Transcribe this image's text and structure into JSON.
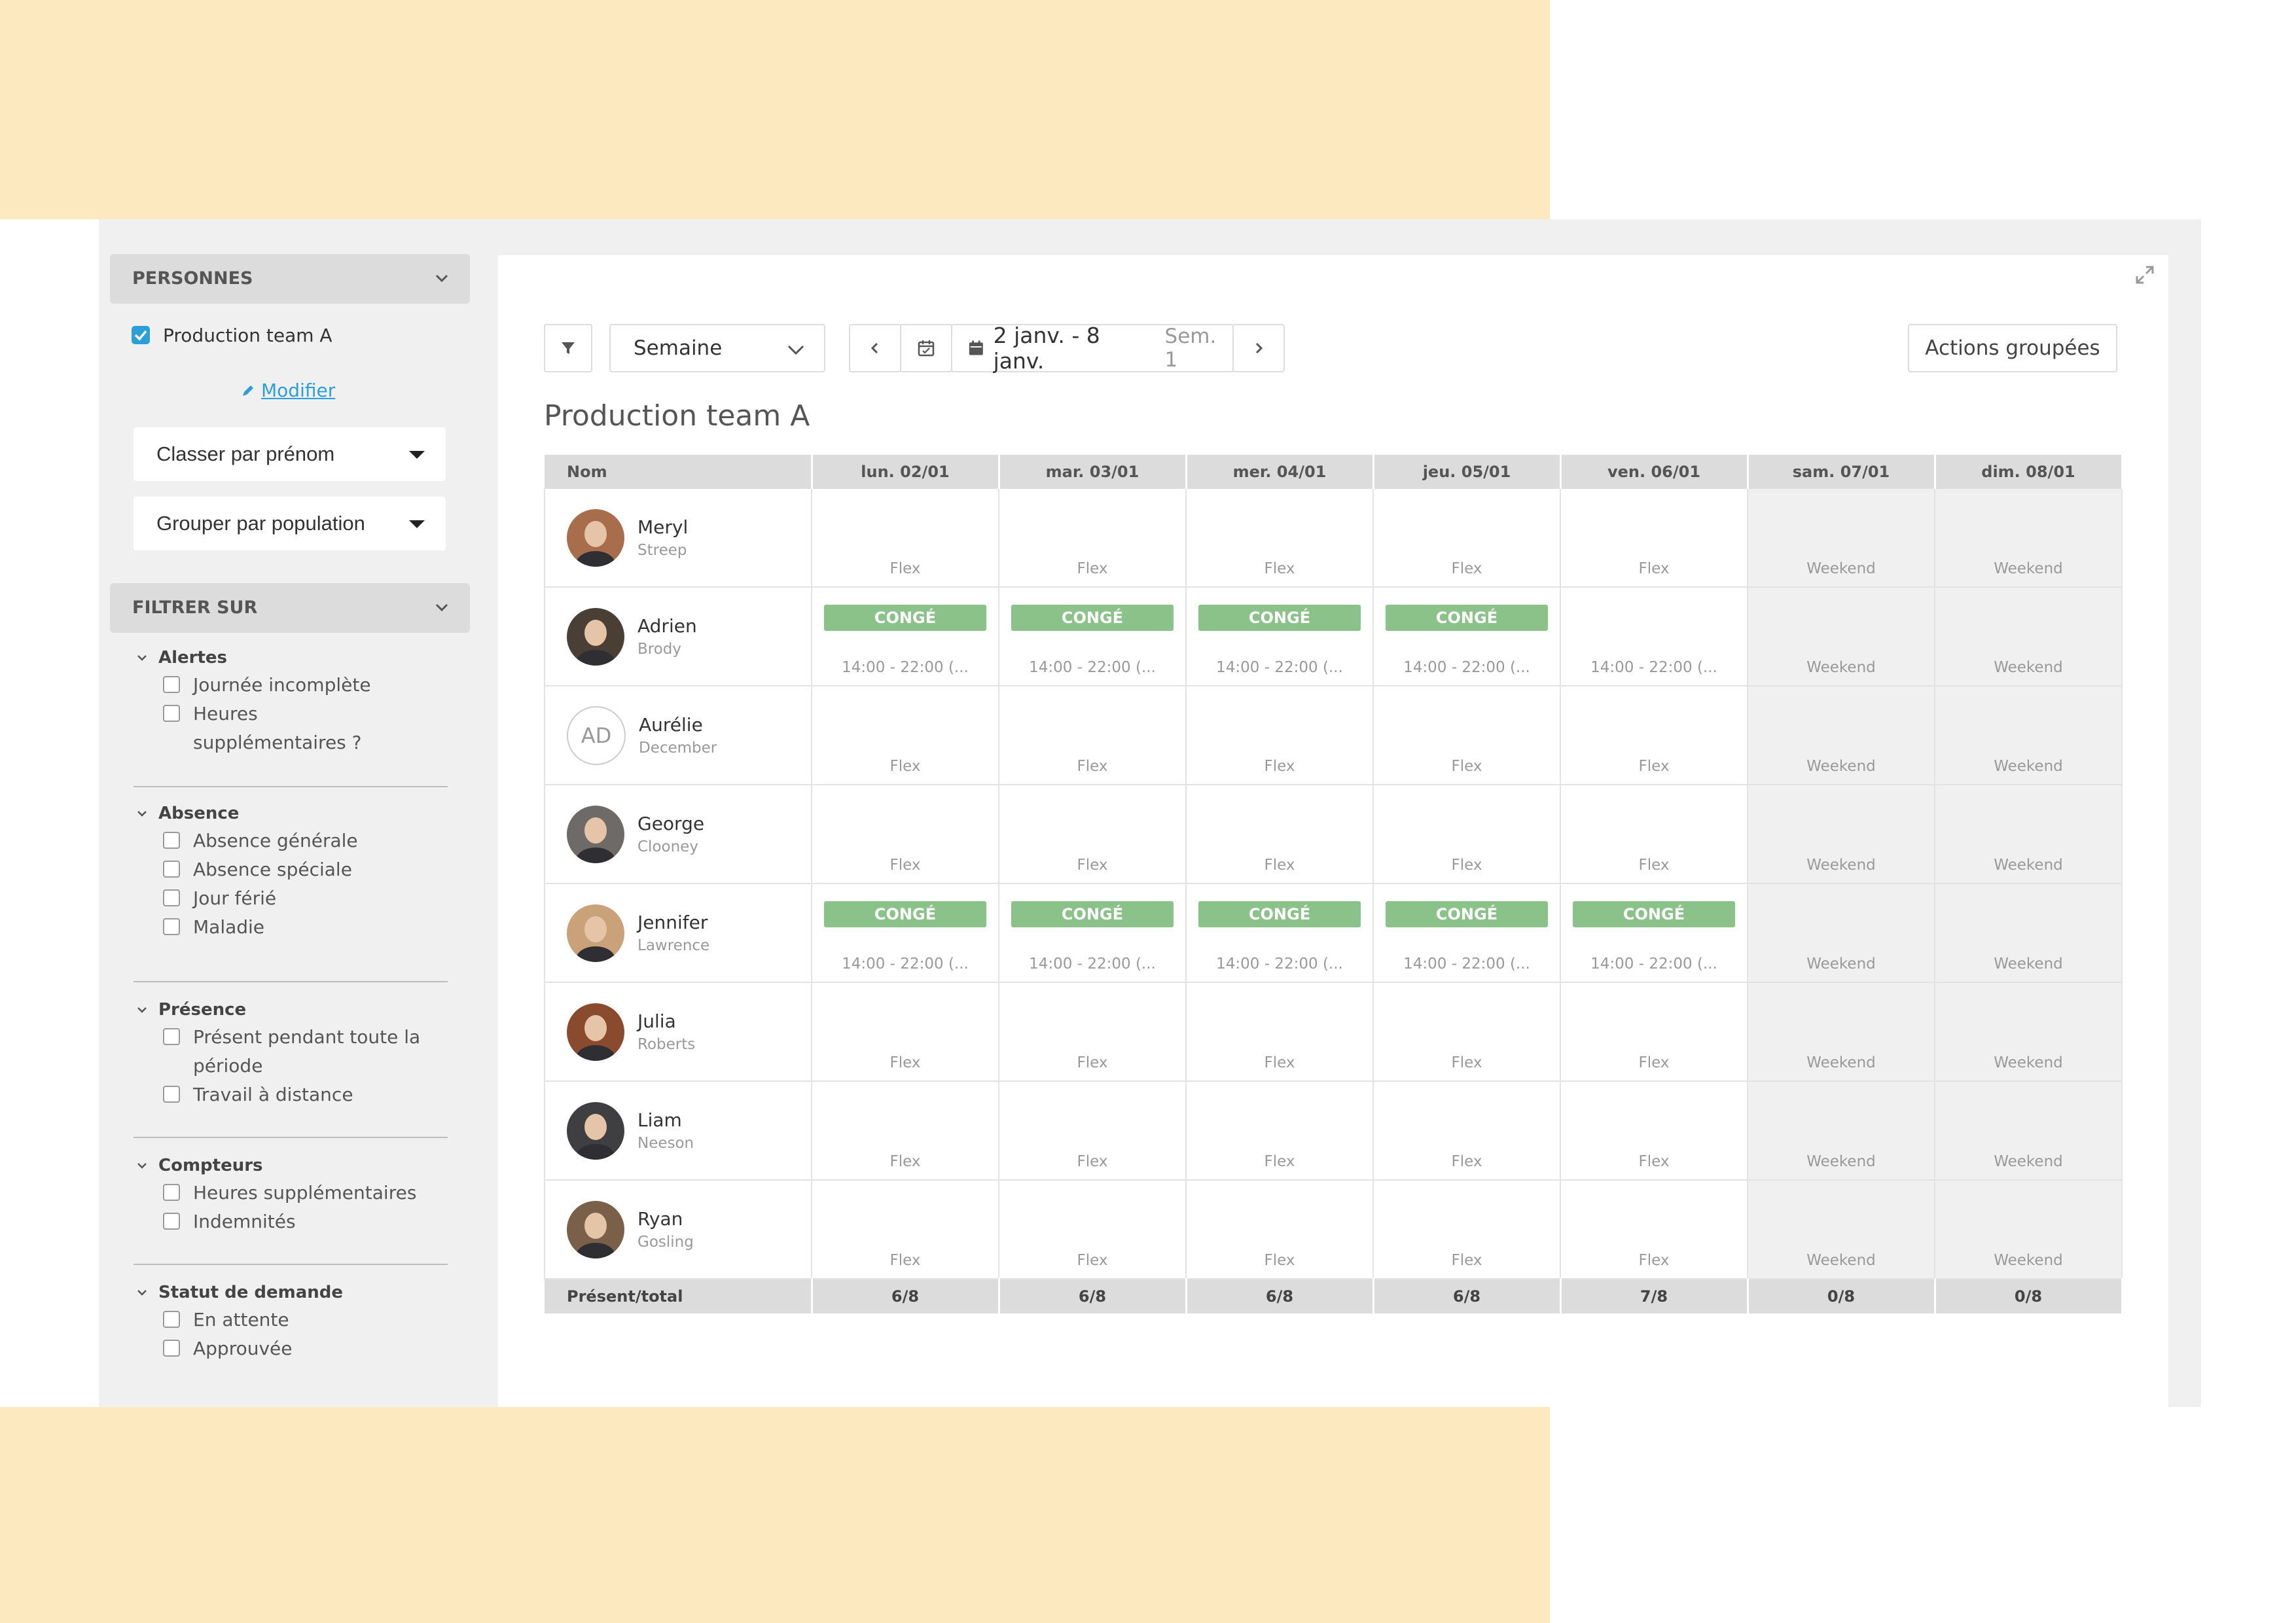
{
  "sidebar": {
    "persons_header": "PERSONNES",
    "team_label": "Production team A",
    "modify_label": "Modifier",
    "sort_select": "Classer par prénom",
    "group_select": "Grouper par population",
    "filter_header": "FILTRER SUR",
    "groups": [
      {
        "title": "Alertes",
        "options": [
          "Journée incomplète",
          "Heures supplémentaires ?"
        ]
      },
      {
        "title": "Absence",
        "options": [
          "Absence générale",
          "Absence spéciale",
          "Jour férié",
          "Maladie"
        ]
      },
      {
        "title": "Présence",
        "options": [
          "Présent pendant toute la période",
          "Travail à distance"
        ]
      },
      {
        "title": "Compteurs",
        "options": [
          "Heures supplémentaires",
          "Indemnités"
        ]
      },
      {
        "title": "Statut de demande",
        "options": [
          "En attente",
          "Approuvée"
        ]
      }
    ]
  },
  "toolbar": {
    "view_select": "Semaine",
    "date_range": "2 janv. - 8 janv.",
    "week_label": "Sem. 1",
    "bulk_actions": "Actions groupées"
  },
  "page_title": "Production team A",
  "table": {
    "name_header": "Nom",
    "days": [
      "lun. 02/01",
      "mar. 03/01",
      "mer. 04/01",
      "jeu. 05/01",
      "ven. 06/01",
      "sam. 07/01",
      "dim. 08/01"
    ],
    "conge_label": "CONGÉ",
    "rows": [
      {
        "first": "Meryl",
        "last": "Streep",
        "initials": "",
        "avatar_color": "#a86e4c",
        "cells": [
          {
            "text": "Flex"
          },
          {
            "text": "Flex"
          },
          {
            "text": "Flex"
          },
          {
            "text": "Flex"
          },
          {
            "text": "Flex"
          },
          {
            "text": "Weekend"
          },
          {
            "text": "Weekend"
          }
        ]
      },
      {
        "first": "Adrien",
        "last": "Brody",
        "initials": "",
        "avatar_color": "#4a3f35",
        "cells": [
          {
            "text": "14:00 - 22:00 (...",
            "conge": true
          },
          {
            "text": "14:00 - 22:00 (...",
            "conge": true
          },
          {
            "text": "14:00 - 22:00 (...",
            "conge": true
          },
          {
            "text": "14:00 - 22:00 (...",
            "conge": true
          },
          {
            "text": "14:00 - 22:00 (..."
          },
          {
            "text": "Weekend"
          },
          {
            "text": "Weekend"
          }
        ]
      },
      {
        "first": "Aurélie",
        "last": "December",
        "initials": "AD",
        "avatar_color": "",
        "cells": [
          {
            "text": "Flex"
          },
          {
            "text": "Flex"
          },
          {
            "text": "Flex"
          },
          {
            "text": "Flex"
          },
          {
            "text": "Flex"
          },
          {
            "text": "Weekend"
          },
          {
            "text": "Weekend"
          }
        ]
      },
      {
        "first": "George",
        "last": "Clooney",
        "initials": "",
        "avatar_color": "#6d6a68",
        "cells": [
          {
            "text": "Flex"
          },
          {
            "text": "Flex"
          },
          {
            "text": "Flex"
          },
          {
            "text": "Flex"
          },
          {
            "text": "Flex"
          },
          {
            "text": "Weekend"
          },
          {
            "text": "Weekend"
          }
        ]
      },
      {
        "first": "Jennifer",
        "last": "Lawrence",
        "initials": "",
        "avatar_color": "#c9a27a",
        "cells": [
          {
            "text": "14:00 - 22:00 (...",
            "conge": true
          },
          {
            "text": "14:00 - 22:00 (...",
            "conge": true
          },
          {
            "text": "14:00 - 22:00 (...",
            "conge": true
          },
          {
            "text": "14:00 - 22:00 (...",
            "conge": true
          },
          {
            "text": "14:00 - 22:00 (...",
            "conge": true
          },
          {
            "text": "Weekend"
          },
          {
            "text": "Weekend"
          }
        ]
      },
      {
        "first": "Julia",
        "last": "Roberts",
        "initials": "",
        "avatar_color": "#8a4a2e",
        "cells": [
          {
            "text": "Flex"
          },
          {
            "text": "Flex"
          },
          {
            "text": "Flex"
          },
          {
            "text": "Flex"
          },
          {
            "text": "Flex"
          },
          {
            "text": "Weekend"
          },
          {
            "text": "Weekend"
          }
        ]
      },
      {
        "first": "Liam",
        "last": "Neeson",
        "initials": "",
        "avatar_color": "#3f3f42",
        "cells": [
          {
            "text": "Flex"
          },
          {
            "text": "Flex"
          },
          {
            "text": "Flex"
          },
          {
            "text": "Flex"
          },
          {
            "text": "Flex"
          },
          {
            "text": "Weekend"
          },
          {
            "text": "Weekend"
          }
        ]
      },
      {
        "first": "Ryan",
        "last": "Gosling",
        "initials": "",
        "avatar_color": "#7a6048",
        "cells": [
          {
            "text": "Flex"
          },
          {
            "text": "Flex"
          },
          {
            "text": "Flex"
          },
          {
            "text": "Flex"
          },
          {
            "text": "Flex"
          },
          {
            "text": "Weekend"
          },
          {
            "text": "Weekend"
          }
        ]
      }
    ],
    "footer_label": "Présent/total",
    "footer_values": [
      "6/8",
      "6/8",
      "6/8",
      "6/8",
      "7/8",
      "0/8",
      "0/8"
    ]
  },
  "colors": {
    "accent": "#2d9fd8",
    "conge": "#8bc28a",
    "peach": "#fde9c0"
  }
}
